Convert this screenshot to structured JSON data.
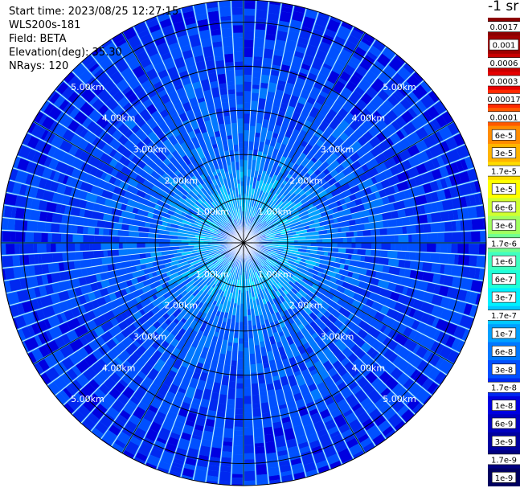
{
  "header": {
    "lines": [
      "Start time: 2023/08/25 12:27:15",
      "WLS200s-181",
      "Field: BETA",
      "Elevation(deg): 35.30",
      "NRays: 120"
    ]
  },
  "chart_data": {
    "type": "heatmap",
    "projection": "polar-ppi",
    "field": "BETA",
    "rays": 120,
    "max_range_km": 5.5,
    "range_rings_km": [
      1,
      2,
      3,
      4,
      5
    ],
    "ring_labels": [
      "1.00km",
      "2.00km",
      "3.00km",
      "4.00km",
      "5.00km"
    ],
    "spoke_angles_deg": [
      0,
      30,
      60,
      90,
      120,
      150,
      180,
      210,
      240,
      270,
      300,
      330
    ],
    "approx_profile": {
      "range_km": [
        0,
        0.3,
        0.7,
        1.0,
        1.3,
        2.0,
        3.0,
        4.0,
        5.0,
        5.5
      ],
      "beta": [
        2e-08,
        4e-08,
        1.5e-07,
        1.7e-07,
        1.2e-07,
        6e-08,
        4e-08,
        3e-08,
        2.5e-08,
        2e-08
      ]
    },
    "colorbar": {
      "title": "-1 sr",
      "levels": [
        "0.0017",
        "0.001",
        "0.0006",
        "0.0003",
        "0.00017",
        "0.0001",
        "6e-5",
        "3e-5",
        "1.7e-5",
        "1e-5",
        "6e-6",
        "3e-6",
        "1.7e-6",
        "1e-6",
        "6e-7",
        "3e-7",
        "1.7e-7",
        "1e-7",
        "6e-8",
        "3e-8",
        "1.7e-8",
        "1e-8",
        "6e-9",
        "3e-9",
        "1.7e-9",
        "1e-9"
      ],
      "colors": [
        "#8b0000",
        "#a00000",
        "#c80000",
        "#e60000",
        "#ff2a00",
        "#ff5a00",
        "#ff8c00",
        "#ffb400",
        "#ffdc00",
        "#ffff00",
        "#d0ff30",
        "#a0ff60",
        "#70ff90",
        "#40ffc0",
        "#20ffd8",
        "#00f0ff",
        "#00c8ff",
        "#00a0ff",
        "#0078ff",
        "#0050ff",
        "#0028f0",
        "#0000e0",
        "#0000c0",
        "#0000a0",
        "#000080",
        "#000060"
      ]
    }
  }
}
